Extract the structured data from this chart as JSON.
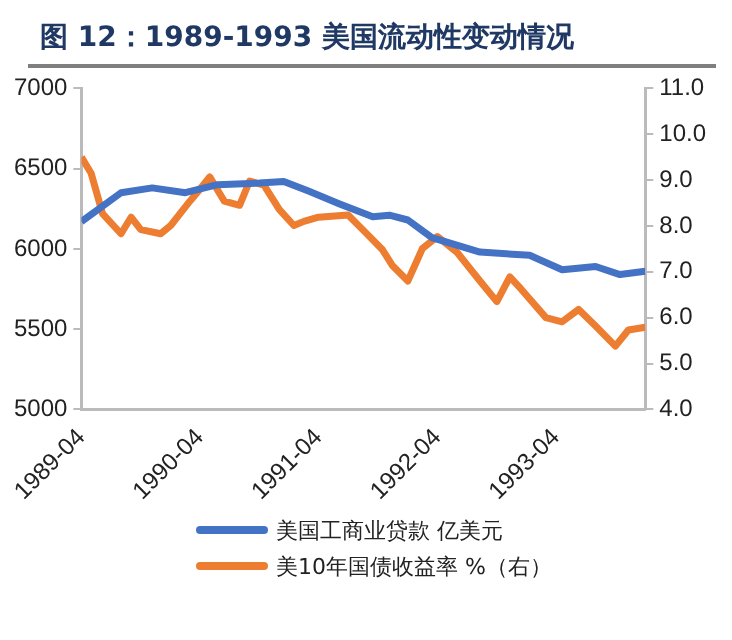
{
  "chart_data": {
    "type": "line",
    "title": "图 12：1989-1993 美国流动性变动情况",
    "xlim": [
      "1989-04",
      "1994-01"
    ],
    "xticks": [
      "1989-04",
      "1990-04",
      "1991-04",
      "1992-04",
      "1993-04"
    ],
    "ylim": [
      5000,
      7000
    ],
    "yticks": [
      5000,
      5500,
      6000,
      6500,
      7000
    ],
    "y2lim": [
      4,
      11
    ],
    "y2ticks": [
      {
        "value": 4,
        "label": "4.0"
      },
      {
        "value": 5,
        "label": "5.0"
      },
      {
        "value": 6,
        "label": "6.0"
      },
      {
        "value": 7,
        "label": "7.0"
      },
      {
        "value": 8,
        "label": "8.0"
      },
      {
        "value": 9,
        "label": "9.0"
      },
      {
        "value": 10,
        "label": "10.0"
      },
      {
        "value": 11,
        "label": "11.0"
      }
    ],
    "grid": false,
    "legend": "bottom",
    "marker": "none",
    "line_style": "solid",
    "series": [
      {
        "name": "美国工商业贷款 亿美元",
        "color": "#4472c4",
        "x": [
          "1989-04-01",
          "1989-08-01",
          "1989-11-05",
          "1990-02-15",
          "1990-05-25",
          "1990-10-01",
          "1990-12-15",
          "1991-03-01",
          "1991-06-05",
          "1991-09-15",
          "1991-11-05",
          "1992-01-01",
          "1992-03-15",
          "1992-08-10",
          "1993-01-10",
          "1993-04-20",
          "1993-08-01",
          "1993-10-15",
          "1994-01-01"
        ],
        "values": [
          6170,
          6350,
          6380,
          6350,
          6400,
          6410,
          6420,
          6360,
          6280,
          6200,
          6210,
          6180,
          6070,
          5980,
          5960,
          5870,
          5890,
          5840,
          5860
        ]
      },
      {
        "name": "美10年国债收益率 %（右）",
        "color": "#ed7d31",
        "axis": "y2",
        "x": [
          "1989-04-01",
          "1989-05-01",
          "1989-06-05",
          "1989-08-01",
          "1989-09-01",
          "1989-10-01",
          "1989-12-01",
          "1990-01-01",
          "1990-03-01",
          "1990-04-01",
          "1990-05-01",
          "1990-06-15",
          "1990-08-01",
          "1990-09-01",
          "1990-10-15",
          "1990-12-01",
          "1991-01-15",
          "1991-02-15",
          "1991-04-01",
          "1991-07-01",
          "1991-08-15",
          "1991-10-15",
          "1991-11-15",
          "1992-01-01",
          "1992-02-15",
          "1992-04-01",
          "1992-06-01",
          "1992-08-10",
          "1992-10-01",
          "1992-11-10",
          "1992-12-15",
          "1993-03-01",
          "1993-04-20",
          "1993-06-10",
          "1993-08-01",
          "1993-10-01",
          "1993-11-10",
          "1994-01-01"
        ],
        "values": [
          9.5,
          9.15,
          8.27,
          7.83,
          8.19,
          7.92,
          7.83,
          8.01,
          8.54,
          8.8,
          9.07,
          8.54,
          8.45,
          8.98,
          8.89,
          8.36,
          8.01,
          8.1,
          8.19,
          8.24,
          7.92,
          7.48,
          7.13,
          6.8,
          7.51,
          7.77,
          7.42,
          6.8,
          6.35,
          6.89,
          6.62,
          6.0,
          5.91,
          6.18,
          5.82,
          5.38,
          5.73,
          5.79
        ]
      }
    ]
  }
}
